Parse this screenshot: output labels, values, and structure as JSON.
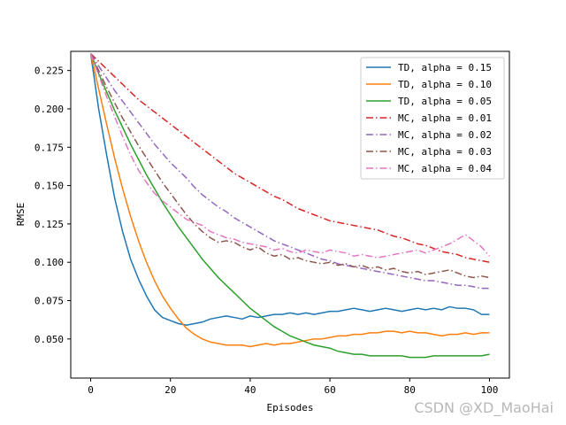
{
  "chart_data": {
    "type": "line",
    "xlabel": "Episodes",
    "ylabel": "RMSE",
    "xlim": [
      -5,
      105
    ],
    "ylim": [
      0.0245,
      0.2375
    ],
    "xticks": [
      0,
      20,
      40,
      60,
      80,
      100
    ],
    "yticks": [
      0.05,
      0.075,
      0.1,
      0.125,
      0.15,
      0.175,
      0.2,
      0.225
    ],
    "ytick_labels": [
      "0.050",
      "0.075",
      "0.100",
      "0.125",
      "0.150",
      "0.175",
      "0.200",
      "0.225"
    ],
    "legend_position": "top-right",
    "grid": false,
    "series": [
      {
        "name": "TD, alpha = 0.15",
        "color": "#1f77b4",
        "dash": "solid",
        "x": [
          0,
          2,
          4,
          6,
          8,
          10,
          12,
          14,
          16,
          18,
          20,
          22,
          24,
          26,
          28,
          30,
          32,
          34,
          36,
          38,
          40,
          42,
          44,
          46,
          48,
          50,
          52,
          54,
          56,
          58,
          60,
          62,
          64,
          66,
          68,
          70,
          72,
          74,
          76,
          78,
          80,
          82,
          84,
          86,
          88,
          90,
          92,
          94,
          96,
          98,
          100
        ],
        "y": [
          0.236,
          0.2,
          0.17,
          0.142,
          0.12,
          0.102,
          0.089,
          0.078,
          0.069,
          0.064,
          0.062,
          0.06,
          0.059,
          0.06,
          0.061,
          0.063,
          0.064,
          0.065,
          0.064,
          0.063,
          0.065,
          0.064,
          0.065,
          0.066,
          0.066,
          0.067,
          0.066,
          0.067,
          0.066,
          0.067,
          0.068,
          0.068,
          0.069,
          0.07,
          0.069,
          0.068,
          0.069,
          0.07,
          0.069,
          0.068,
          0.069,
          0.07,
          0.069,
          0.07,
          0.069,
          0.071,
          0.07,
          0.07,
          0.069,
          0.066,
          0.066
        ]
      },
      {
        "name": "TD, alpha = 0.10",
        "color": "#ff7f0e",
        "dash": "solid",
        "x": [
          0,
          2,
          4,
          6,
          8,
          10,
          12,
          14,
          16,
          18,
          20,
          22,
          24,
          26,
          28,
          30,
          32,
          34,
          36,
          38,
          40,
          42,
          44,
          46,
          48,
          50,
          52,
          54,
          56,
          58,
          60,
          62,
          64,
          66,
          68,
          70,
          72,
          74,
          76,
          78,
          80,
          82,
          84,
          86,
          88,
          90,
          92,
          94,
          96,
          98,
          100
        ],
        "y": [
          0.236,
          0.213,
          0.19,
          0.168,
          0.148,
          0.13,
          0.114,
          0.1,
          0.088,
          0.078,
          0.07,
          0.063,
          0.057,
          0.053,
          0.05,
          0.048,
          0.047,
          0.046,
          0.046,
          0.046,
          0.045,
          0.046,
          0.047,
          0.046,
          0.047,
          0.047,
          0.048,
          0.049,
          0.05,
          0.05,
          0.051,
          0.052,
          0.052,
          0.053,
          0.053,
          0.054,
          0.054,
          0.055,
          0.055,
          0.054,
          0.055,
          0.054,
          0.054,
          0.053,
          0.052,
          0.053,
          0.053,
          0.054,
          0.053,
          0.054,
          0.054
        ]
      },
      {
        "name": "TD, alpha = 0.05",
        "color": "#2ca02c",
        "dash": "solid",
        "x": [
          0,
          2,
          4,
          6,
          8,
          10,
          12,
          14,
          16,
          18,
          20,
          22,
          24,
          26,
          28,
          30,
          32,
          34,
          36,
          38,
          40,
          42,
          44,
          46,
          48,
          50,
          52,
          54,
          56,
          58,
          60,
          62,
          64,
          66,
          68,
          70,
          72,
          74,
          76,
          78,
          80,
          82,
          84,
          86,
          88,
          90,
          92,
          94,
          96,
          98,
          100
        ],
        "y": [
          0.236,
          0.223,
          0.211,
          0.199,
          0.188,
          0.177,
          0.167,
          0.157,
          0.148,
          0.139,
          0.131,
          0.123,
          0.116,
          0.109,
          0.102,
          0.096,
          0.09,
          0.085,
          0.08,
          0.075,
          0.07,
          0.066,
          0.062,
          0.058,
          0.055,
          0.052,
          0.05,
          0.048,
          0.046,
          0.045,
          0.044,
          0.042,
          0.041,
          0.04,
          0.04,
          0.039,
          0.039,
          0.039,
          0.039,
          0.039,
          0.038,
          0.038,
          0.038,
          0.039,
          0.039,
          0.039,
          0.039,
          0.039,
          0.039,
          0.039,
          0.04
        ]
      },
      {
        "name": "MC, alpha = 0.01",
        "color": "#d62728",
        "dash": "dashdot",
        "x": [
          0,
          2,
          4,
          6,
          8,
          10,
          12,
          14,
          16,
          18,
          20,
          22,
          24,
          26,
          28,
          30,
          32,
          34,
          36,
          38,
          40,
          42,
          44,
          46,
          48,
          50,
          52,
          54,
          56,
          58,
          60,
          62,
          64,
          66,
          68,
          70,
          72,
          74,
          76,
          78,
          80,
          82,
          84,
          86,
          88,
          90,
          92,
          94,
          96,
          98,
          100
        ],
        "y": [
          0.236,
          0.231,
          0.226,
          0.221,
          0.216,
          0.211,
          0.206,
          0.202,
          0.198,
          0.194,
          0.19,
          0.186,
          0.182,
          0.178,
          0.174,
          0.17,
          0.166,
          0.162,
          0.158,
          0.155,
          0.152,
          0.149,
          0.146,
          0.143,
          0.141,
          0.138,
          0.135,
          0.133,
          0.131,
          0.129,
          0.127,
          0.126,
          0.125,
          0.124,
          0.123,
          0.122,
          0.121,
          0.119,
          0.117,
          0.116,
          0.114,
          0.112,
          0.111,
          0.109,
          0.107,
          0.106,
          0.105,
          0.103,
          0.102,
          0.101,
          0.1
        ]
      },
      {
        "name": "MC, alpha = 0.02",
        "color": "#9467bd",
        "dash": "dashdot",
        "x": [
          0,
          2,
          4,
          6,
          8,
          10,
          12,
          14,
          16,
          18,
          20,
          22,
          24,
          26,
          28,
          30,
          32,
          34,
          36,
          38,
          40,
          42,
          44,
          46,
          48,
          50,
          52,
          54,
          56,
          58,
          60,
          62,
          64,
          66,
          68,
          70,
          72,
          74,
          76,
          78,
          80,
          82,
          84,
          86,
          88,
          90,
          92,
          94,
          96,
          98,
          100
        ],
        "y": [
          0.236,
          0.228,
          0.22,
          0.212,
          0.205,
          0.198,
          0.191,
          0.184,
          0.177,
          0.171,
          0.165,
          0.16,
          0.155,
          0.149,
          0.144,
          0.14,
          0.136,
          0.133,
          0.129,
          0.126,
          0.123,
          0.12,
          0.117,
          0.114,
          0.112,
          0.11,
          0.108,
          0.106,
          0.104,
          0.102,
          0.101,
          0.099,
          0.098,
          0.097,
          0.096,
          0.095,
          0.094,
          0.093,
          0.092,
          0.091,
          0.09,
          0.089,
          0.088,
          0.088,
          0.087,
          0.086,
          0.085,
          0.085,
          0.084,
          0.083,
          0.083
        ]
      },
      {
        "name": "MC, alpha = 0.03",
        "color": "#8c564b",
        "dash": "dashdot",
        "x": [
          0,
          2,
          4,
          6,
          8,
          10,
          12,
          14,
          16,
          18,
          20,
          22,
          24,
          26,
          28,
          30,
          32,
          34,
          36,
          38,
          40,
          42,
          44,
          46,
          48,
          50,
          52,
          54,
          56,
          58,
          60,
          62,
          64,
          66,
          68,
          70,
          72,
          74,
          76,
          78,
          80,
          82,
          84,
          86,
          88,
          90,
          92,
          94,
          96,
          98,
          100
        ],
        "y": [
          0.236,
          0.225,
          0.214,
          0.204,
          0.194,
          0.185,
          0.176,
          0.168,
          0.16,
          0.152,
          0.145,
          0.138,
          0.131,
          0.125,
          0.12,
          0.116,
          0.113,
          0.114,
          0.113,
          0.11,
          0.108,
          0.11,
          0.106,
          0.104,
          0.105,
          0.102,
          0.103,
          0.101,
          0.1,
          0.099,
          0.1,
          0.098,
          0.099,
          0.097,
          0.098,
          0.096,
          0.097,
          0.095,
          0.096,
          0.094,
          0.093,
          0.094,
          0.092,
          0.093,
          0.094,
          0.095,
          0.093,
          0.091,
          0.09,
          0.091,
          0.09
        ]
      },
      {
        "name": "MC, alpha = 0.04",
        "color": "#e377c2",
        "dash": "dashdot",
        "x": [
          0,
          2,
          4,
          6,
          8,
          10,
          12,
          14,
          16,
          18,
          20,
          22,
          24,
          26,
          28,
          30,
          32,
          34,
          36,
          38,
          40,
          42,
          44,
          46,
          48,
          50,
          52,
          54,
          56,
          58,
          60,
          62,
          64,
          66,
          68,
          70,
          72,
          74,
          76,
          78,
          80,
          82,
          84,
          86,
          88,
          90,
          92,
          94,
          96,
          98,
          100
        ],
        "y": [
          0.236,
          0.222,
          0.208,
          0.195,
          0.182,
          0.17,
          0.16,
          0.152,
          0.145,
          0.14,
          0.136,
          0.132,
          0.128,
          0.126,
          0.124,
          0.12,
          0.118,
          0.116,
          0.115,
          0.113,
          0.112,
          0.111,
          0.11,
          0.108,
          0.109,
          0.107,
          0.106,
          0.108,
          0.107,
          0.106,
          0.108,
          0.107,
          0.106,
          0.104,
          0.105,
          0.104,
          0.103,
          0.104,
          0.105,
          0.106,
          0.107,
          0.108,
          0.106,
          0.108,
          0.11,
          0.112,
          0.115,
          0.118,
          0.114,
          0.11,
          0.104
        ]
      }
    ]
  },
  "watermark": "CSDN @XD_MaoHai"
}
